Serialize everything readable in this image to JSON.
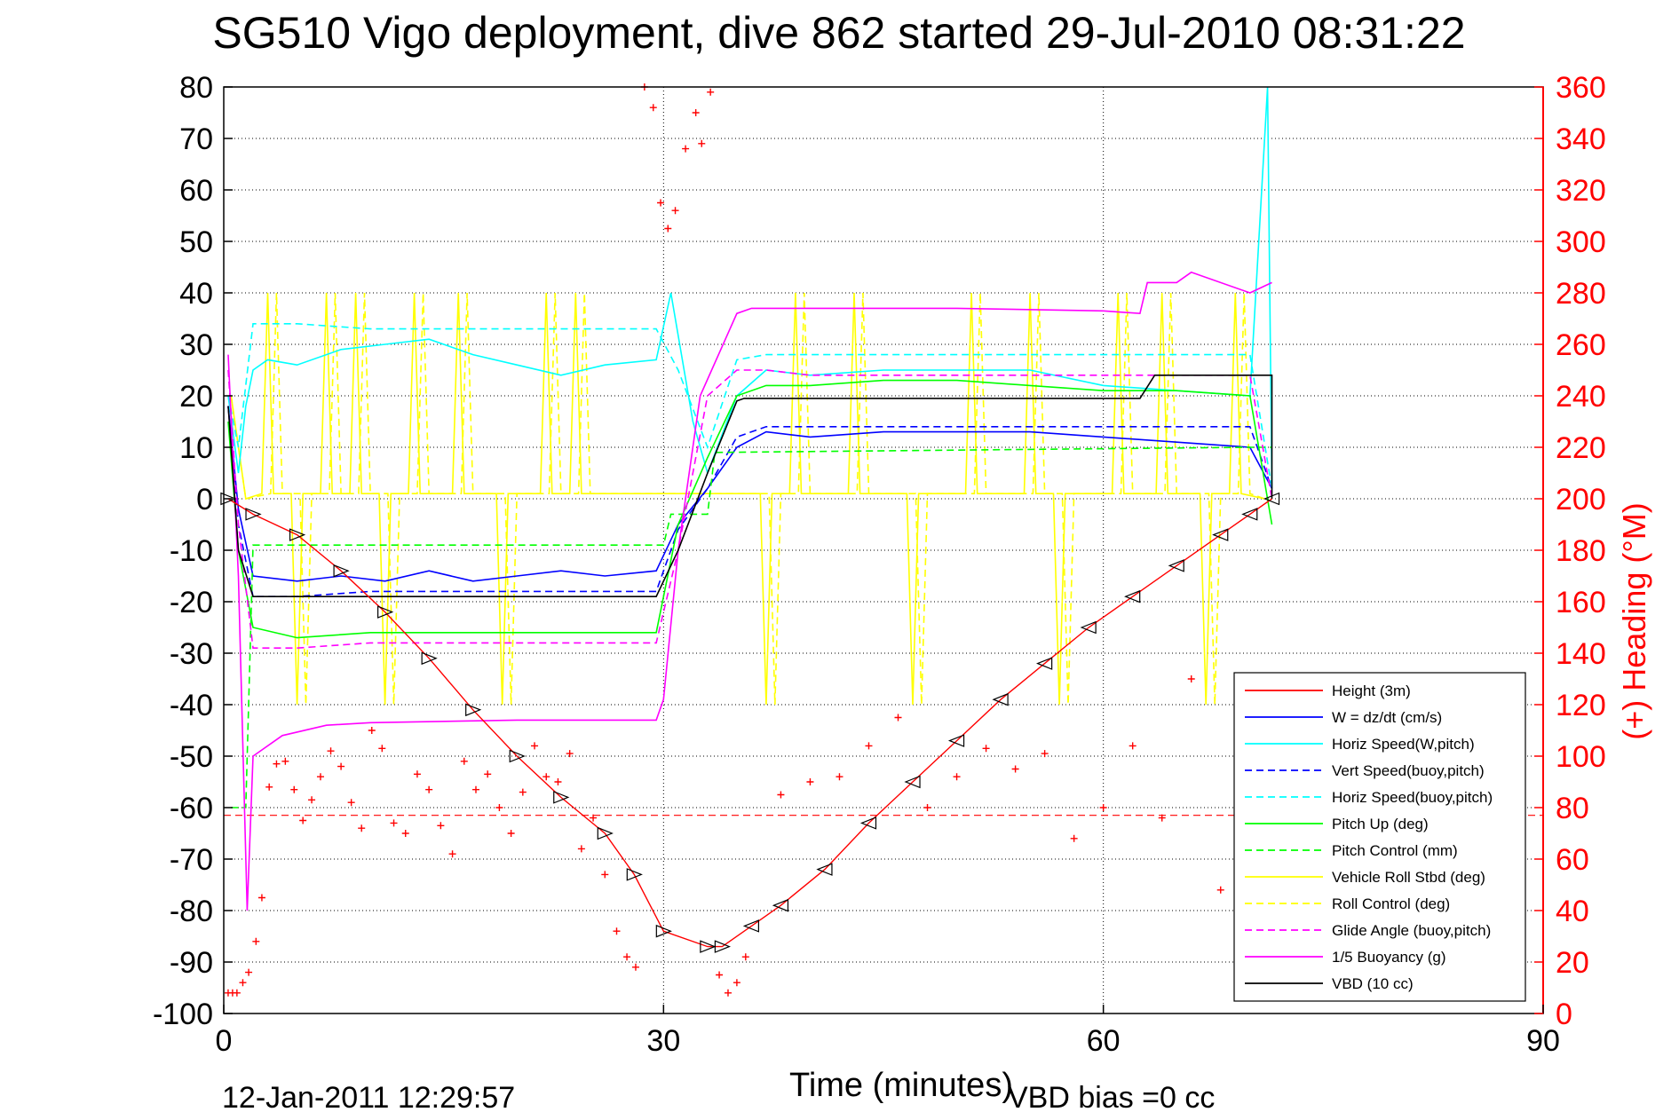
{
  "chart_data": {
    "type": "line",
    "title": "SG510 Vigo deployment, dive 862 started 29-Jul-2010 08:31:22",
    "xlabel": "Time (minutes)",
    "ylabel": "",
    "y2label": "(+) Heading (°M)",
    "xlim": [
      0,
      90
    ],
    "ylim": [
      -100,
      80
    ],
    "y2lim": [
      0,
      360
    ],
    "xticks": [
      "0",
      "30",
      "60",
      "90"
    ],
    "yticks": [
      "80",
      "70",
      "60",
      "50",
      "40",
      "30",
      "20",
      "10",
      "0",
      "-10",
      "-20",
      "-30",
      "-40",
      "-50",
      "-60",
      "-70",
      "-80",
      "-90",
      "-100"
    ],
    "y2ticks": [
      "360",
      "340",
      "320",
      "300",
      "280",
      "260",
      "240",
      "220",
      "200",
      "180",
      "160",
      "140",
      "120",
      "100",
      "80",
      "60",
      "40",
      "20",
      "0"
    ],
    "grid": true,
    "legend_position": "bottom-right",
    "colors": {
      "red": "#ff0000",
      "blue": "#0000ff",
      "cyan": "#00ffff",
      "green": "#00ff00",
      "yellow": "#ffff00",
      "magenta": "#ff00ff",
      "black": "#000000"
    },
    "series": [
      {
        "name": "Height (3m)",
        "color": "#ff0000",
        "style": "solid",
        "x": [],
        "y": []
      },
      {
        "name": "W = dz/dt (cm/s)",
        "color": "#0000ff",
        "style": "solid",
        "x": [
          0.3,
          1,
          2,
          5,
          8,
          11,
          14,
          17,
          20,
          23,
          26,
          29.5,
          31,
          33,
          35,
          37,
          40,
          45,
          50,
          55,
          60,
          65,
          70,
          71.5
        ],
        "y": [
          18,
          -2,
          -15,
          -16,
          -15,
          -16,
          -14,
          -16,
          -15,
          -14,
          -15,
          -14,
          -5,
          2,
          10,
          13,
          12,
          13,
          13,
          13,
          12,
          11,
          10,
          2
        ]
      },
      {
        "name": "Horiz Speed(W,pitch)",
        "color": "#00ffff",
        "style": "solid",
        "x": [
          0.3,
          1,
          1.5,
          2,
          3,
          5,
          8,
          11,
          14,
          17,
          20,
          23,
          26,
          29.5,
          30.5,
          32,
          33,
          35,
          37,
          40,
          45,
          50,
          55,
          60,
          65,
          70,
          71.2,
          71.5
        ],
        "y": [
          20,
          5,
          18,
          25,
          27,
          26,
          29,
          30,
          31,
          28,
          26,
          24,
          26,
          27,
          40,
          15,
          5,
          20,
          25,
          24,
          25,
          25,
          25,
          22,
          21,
          20,
          80,
          2
        ]
      },
      {
        "name": "Vert Speed(buoy,pitch)",
        "color": "#0000ff",
        "style": "dashed",
        "x": [
          0.3,
          1,
          2,
          5,
          10,
          15,
          20,
          25,
          29.5,
          31,
          33,
          35,
          37,
          40,
          45,
          50,
          55,
          60,
          65,
          70,
          71.5
        ],
        "y": [
          18,
          -5,
          -19,
          -19,
          -18,
          -18,
          -18,
          -18,
          -18,
          -6,
          2,
          12,
          14,
          14,
          14,
          14,
          14,
          14,
          14,
          14,
          2
        ]
      },
      {
        "name": "Horiz Speed(buoy,pitch)",
        "color": "#00ffff",
        "style": "dashed",
        "x": [
          0.3,
          1,
          2,
          5,
          10,
          15,
          20,
          25,
          29.5,
          31,
          33,
          35,
          37,
          40,
          45,
          50,
          55,
          60,
          65,
          70,
          71.5
        ],
        "y": [
          20,
          10,
          34,
          34,
          33,
          33,
          33,
          33,
          33,
          25,
          10,
          27,
          28,
          28,
          28,
          28,
          28,
          28,
          28,
          28,
          2
        ]
      },
      {
        "name": "Pitch Up (deg)",
        "color": "#00ff00",
        "style": "solid",
        "x": [
          0.3,
          1,
          2,
          5,
          10,
          15,
          20,
          25,
          29.5,
          31,
          33,
          35,
          37,
          40,
          45,
          50,
          55,
          60,
          65,
          70,
          71.5
        ],
        "y": [
          15,
          -10,
          -25,
          -27,
          -26,
          -26,
          -26,
          -26,
          -26,
          -5,
          8,
          20,
          22,
          22,
          23,
          23,
          22,
          21,
          21,
          20,
          -5
        ]
      },
      {
        "name": "Pitch Control (mm)",
        "color": "#00ff00",
        "style": "dashed",
        "x": [
          0.5,
          1.5,
          2,
          30,
          30.5,
          33,
          33.5,
          70,
          71.5
        ],
        "y": [
          -60,
          -60,
          -9,
          -9,
          -3,
          -3,
          9,
          10,
          10
        ]
      },
      {
        "name": "Vehicle Roll Stbd (deg)",
        "color": "#ffff00",
        "style": "solid",
        "x": [],
        "y": []
      },
      {
        "name": "Roll Control (deg)",
        "color": "#ffff00",
        "style": "dashed",
        "x": [],
        "y": []
      },
      {
        "name": "Glide Angle (buoy,pitch)",
        "color": "#ff00ff",
        "style": "dashed",
        "x": [
          0.3,
          1,
          2,
          5,
          10,
          15,
          20,
          25,
          29.5,
          31,
          33,
          35,
          37,
          40,
          45,
          50,
          55,
          60,
          65,
          70,
          71.5
        ],
        "y": [
          25,
          -5,
          -29,
          -29,
          -28,
          -28,
          -28,
          -28,
          -28,
          -10,
          20,
          25,
          25,
          24,
          24,
          24,
          24,
          24,
          24,
          24,
          0
        ]
      },
      {
        "name": "1/5 Buoyancy (g)",
        "color": "#ff00ff",
        "style": "solid",
        "x": [
          0.3,
          1,
          1.6,
          2,
          4,
          7,
          10,
          20,
          29.5,
          30,
          31,
          32.5,
          35,
          36,
          40,
          50,
          60,
          62.5,
          63,
          65,
          66,
          70,
          71.5
        ],
        "y": [
          28,
          -15,
          -80,
          -50,
          -46,
          -44,
          -43.5,
          -43,
          -43,
          -39,
          -10,
          20,
          36,
          37,
          37,
          37,
          36.5,
          36,
          42,
          42,
          44,
          40,
          42
        ]
      },
      {
        "name": "VBD (10 cc)",
        "color": "#000000",
        "style": "solid",
        "x": [
          0.3,
          1,
          2,
          5,
          29.5,
          31,
          33,
          35,
          35.5,
          62.5,
          63.5,
          71.5,
          71.5
        ],
        "y": [
          18,
          -10,
          -19,
          -19,
          -19,
          -10,
          5,
          19,
          19.5,
          19.5,
          24,
          24,
          0
        ]
      }
    ],
    "depth_profile": {
      "color": "#ff0000",
      "marker": "triangle",
      "x": [
        0.3,
        2,
        5,
        8,
        11,
        14,
        17,
        20,
        23,
        26,
        28,
        30,
        33,
        34,
        36,
        38,
        41,
        44,
        47,
        50,
        53,
        56,
        59,
        62,
        65,
        68,
        70,
        71.5
      ],
      "y": [
        0,
        -3,
        -7,
        -14,
        -22,
        -31,
        -41,
        -50,
        -58,
        -65,
        -73,
        -84,
        -87,
        -87,
        -83,
        -79,
        -72,
        -63,
        -55,
        -47,
        -39,
        -32,
        -25,
        -19,
        -13,
        -7,
        -3,
        0
      ]
    },
    "heading_samples": {
      "name": "(+) Heading (°M)",
      "color": "#ff0000",
      "marker": "plus",
      "x": [
        0.3,
        0.6,
        0.9,
        1.3,
        1.7,
        2.2,
        2.6,
        3.1,
        3.6,
        4.2,
        4.8,
        5.4,
        6.0,
        6.6,
        7.3,
        8.0,
        8.7,
        9.4,
        10.1,
        10.8,
        11.6,
        12.4,
        13.2,
        14.0,
        14.8,
        15.6,
        16.4,
        17.2,
        18.0,
        18.8,
        19.6,
        20.4,
        21.2,
        22.0,
        22.8,
        23.6,
        24.4,
        25.2,
        26.0,
        26.8,
        27.5,
        28.1,
        28.7,
        29.3,
        29.8,
        30.3,
        30.8,
        31.5,
        32.2,
        32.6,
        33.2,
        33.8,
        34.4,
        35.0,
        35.6,
        38.0,
        40.0,
        42.0,
        44.0,
        46.0,
        48.0,
        50.0,
        52.0,
        54.0,
        56.0,
        58.0,
        60.0,
        62.0,
        64.0,
        66.0,
        68.0,
        70.0
      ],
      "y": [
        8,
        8,
        8,
        12,
        16,
        28,
        45,
        88,
        97,
        98,
        87,
        75,
        83,
        92,
        102,
        96,
        82,
        72,
        110,
        103,
        74,
        70,
        93,
        87,
        73,
        62,
        98,
        87,
        93,
        80,
        70,
        86,
        104,
        92,
        90,
        101,
        64,
        76,
        54,
        32,
        22,
        18,
        360,
        352,
        315,
        305,
        312,
        336,
        350,
        338,
        358,
        15,
        8,
        12,
        22,
        85,
        90,
        92,
        104,
        115,
        80,
        92,
        103,
        95,
        101,
        68,
        80,
        104,
        76,
        130,
        48,
        96
      ]
    }
  },
  "annotations": {
    "timestamp": "12-Jan-2011 12:29:57",
    "vbd_bias": "VBD bias =0 cc"
  }
}
